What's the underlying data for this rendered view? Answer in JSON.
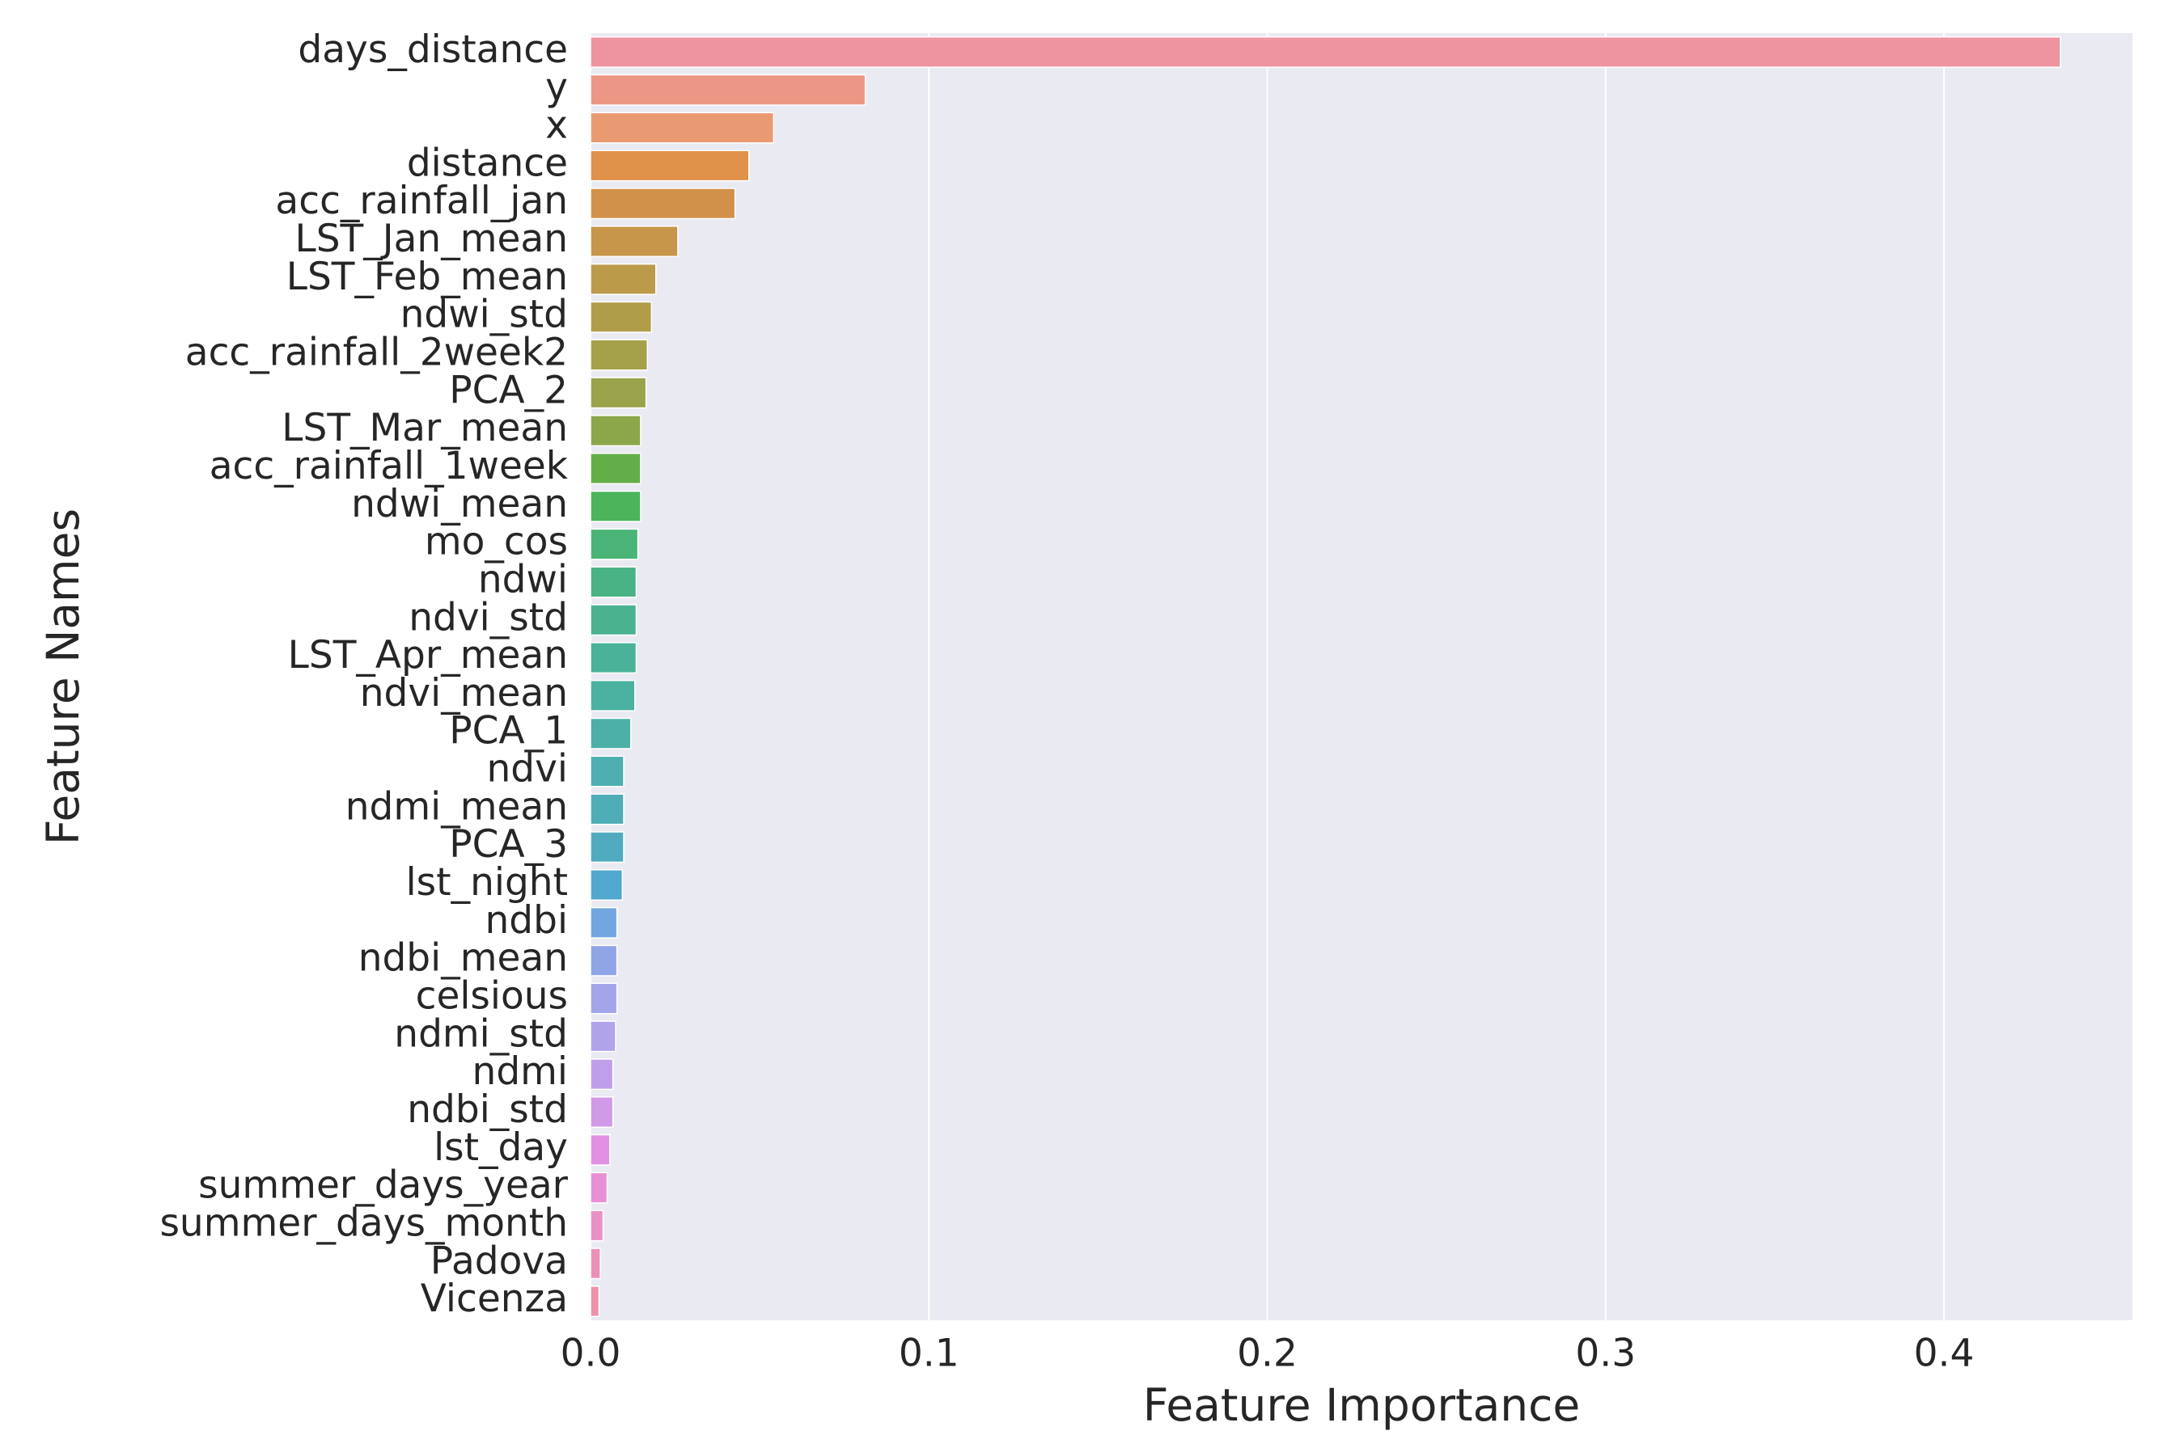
{
  "chart_data": {
    "type": "barh",
    "xlabel": "Feature Importance",
    "ylabel": "Feature Names",
    "categories": [
      "days_distance",
      "y",
      "x",
      "distance",
      "acc_rainfall_jan",
      "LST_Jan_mean",
      "LST_Feb_mean",
      "ndwi_std",
      "acc_rainfall_2week2",
      "PCA_2",
      "LST_Mar_mean",
      "acc_rainfall_1week",
      "ndwi_mean",
      "mo_cos",
      "ndwi",
      "ndvi_std",
      "LST_Apr_mean",
      "ndvi_mean",
      "PCA_1",
      "ndvi",
      "ndmi_mean",
      "PCA_3",
      "lst_night",
      "ndbi",
      "ndbi_mean",
      "celsious",
      "ndmi_std",
      "ndmi",
      "ndbi_std",
      "lst_day",
      "summer_days_year",
      "summer_days_month",
      "Padova",
      "Vicenza"
    ],
    "values": [
      0.4344,
      0.0812,
      0.0541,
      0.0468,
      0.0427,
      0.0258,
      0.0193,
      0.018,
      0.0168,
      0.0164,
      0.0148,
      0.0148,
      0.0148,
      0.014,
      0.0135,
      0.0135,
      0.0135,
      0.0131,
      0.0119,
      0.0098,
      0.0098,
      0.0098,
      0.0094,
      0.0078,
      0.0078,
      0.0078,
      0.0074,
      0.0066,
      0.0066,
      0.0057,
      0.0049,
      0.0037,
      0.0029,
      0.0025
    ],
    "colors": [
      "#ee93a0",
      "#ec9786",
      "#e99a73",
      "#e0914a",
      "#d2914a",
      "#c7964a",
      "#bb9a4a",
      "#b09d4a",
      "#a5a04a",
      "#99a34a",
      "#8ca64a",
      "#64ae4a",
      "#4cb45a",
      "#4ab477",
      "#4ab385",
      "#4ab28f",
      "#4ab298",
      "#4bb1a0",
      "#4cb0a7",
      "#4dafaf",
      "#4eadb7",
      "#50abc1",
      "#52a8cf",
      "#73a5e0",
      "#90a5e6",
      "#a3a5e9",
      "#b1a3ea",
      "#c09fea",
      "#d09ae7",
      "#e191e2",
      "#e88fd5",
      "#ea90c5",
      "#eb91b6",
      "#ed92aa"
    ],
    "xlim": [
      0,
      0.4557
    ],
    "xticks": [
      {
        "value": 0,
        "label": "0.0"
      },
      0.1,
      0.2,
      0.3,
      0.4
    ],
    "grid": true
  }
}
